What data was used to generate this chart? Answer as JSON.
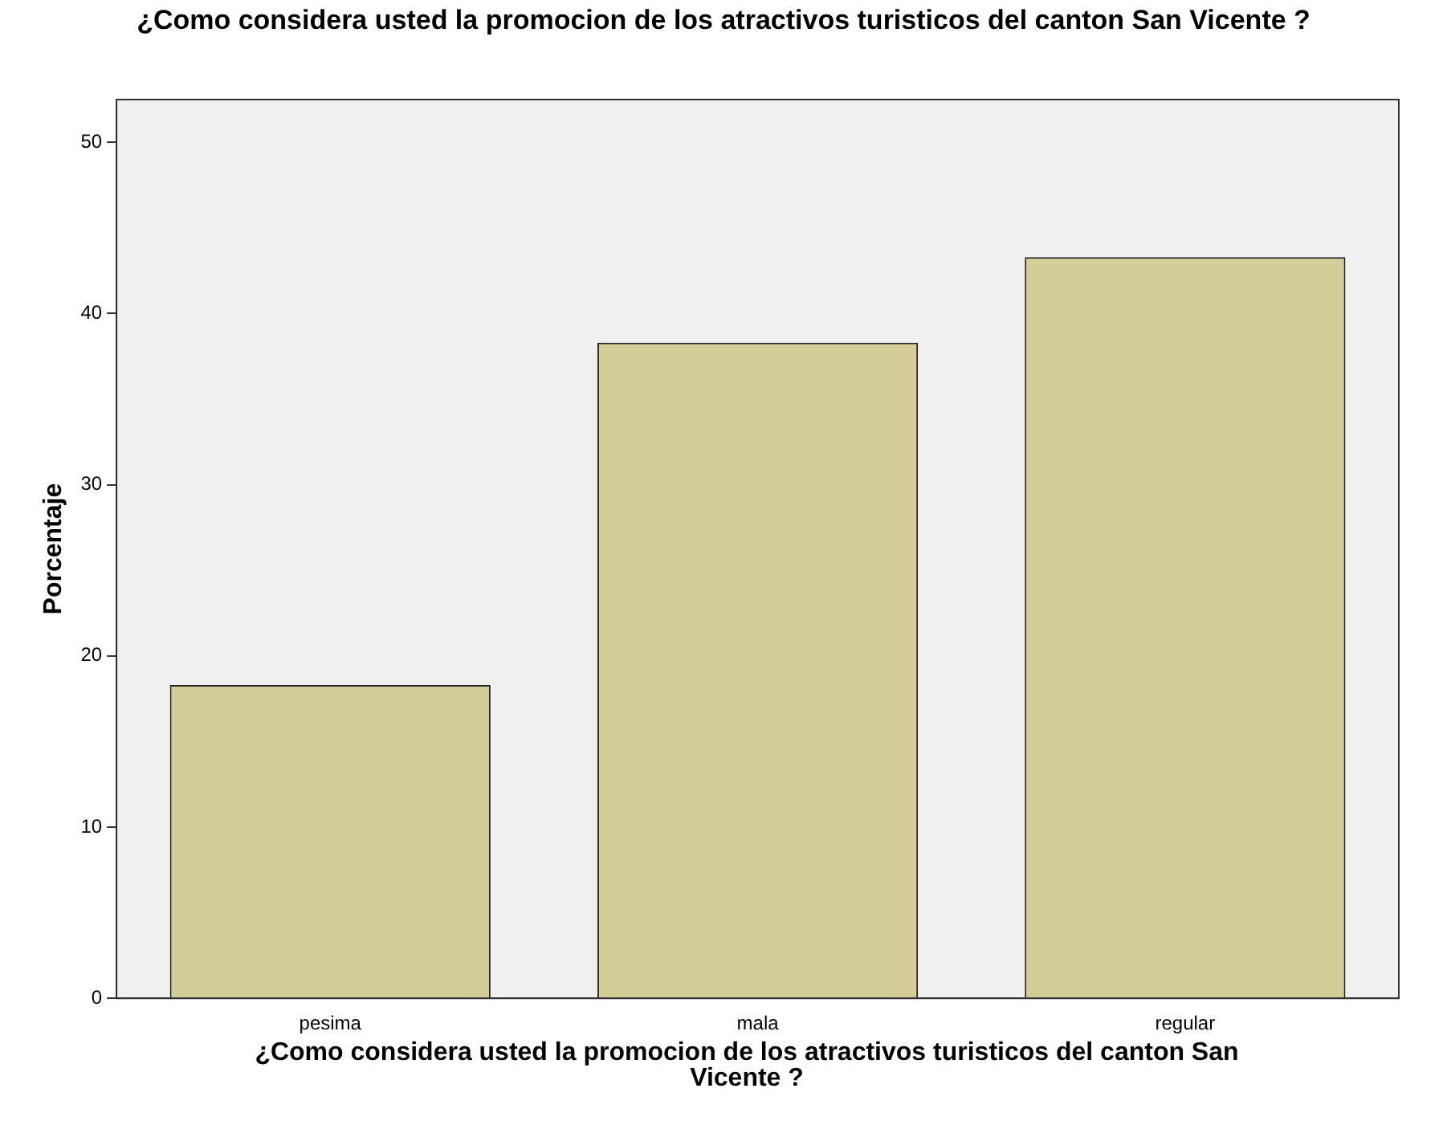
{
  "chart_data": {
    "type": "bar",
    "title": "¿Como considera usted la promocion de los atractivos turisticos del canton San Vicente ?",
    "xlabel": "¿Como considera usted la promocion de los atractivos turisticos del canton San Vicente ?",
    "ylabel": "Porcentaje",
    "categories": [
      "pesima",
      "mala",
      "regular"
    ],
    "values": [
      18.3,
      38.3,
      43.3
    ],
    "color": "#d3cd97",
    "ylim": [
      0,
      52.5
    ],
    "yticks": [
      0,
      10,
      20,
      30,
      40,
      50
    ],
    "grid": false
  }
}
